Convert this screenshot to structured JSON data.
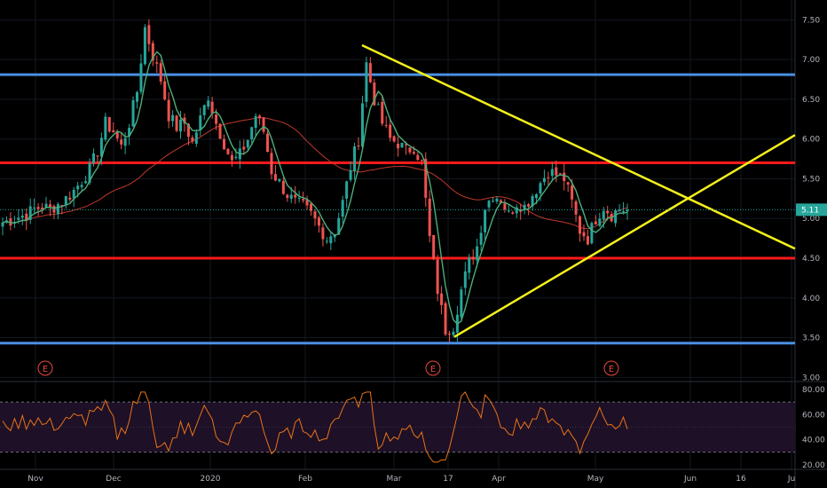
{
  "chart_data": [
    {
      "type": "candlestick",
      "title": "",
      "xlabel": "",
      "ylabel": "",
      "x_tick_labels": [
        "Nov",
        "Dec",
        "2020",
        "Feb",
        "Mar",
        "17",
        "Apr",
        "May",
        "Jun",
        "16",
        "Ju"
      ],
      "y_tick_labels": [
        "7.50",
        "7.00",
        "6.50",
        "6.00",
        "5.50",
        "5.00",
        "4.50",
        "4.00",
        "3.50",
        "3.00"
      ],
      "ylim": [
        2.97,
        7.75
      ],
      "last_price_label": "5.11",
      "earnings_markers": [
        "E",
        "E",
        "E"
      ],
      "horizontal_levels": [
        {
          "value": 6.81,
          "color": "#4a90e2"
        },
        {
          "value": 5.7,
          "color": "#ff1a1a"
        },
        {
          "value": 4.5,
          "color": "#ff1a1a"
        },
        {
          "value": 3.43,
          "color": "#4a90e2"
        }
      ],
      "trendlines_color": "#f5f01a",
      "close_series_approx": [
        4.95,
        4.98,
        5.02,
        5.05,
        5.12,
        5.15,
        5.12,
        5.18,
        5.25,
        5.35,
        5.48,
        5.62,
        5.85,
        6.2,
        6.1,
        5.9,
        6.2,
        6.6,
        7.4,
        7.05,
        6.75,
        6.3,
        6.15,
        6.2,
        5.95,
        6.25,
        6.55,
        6.2,
        5.95,
        5.7,
        5.8,
        6.0,
        6.3,
        6.1,
        5.6,
        5.45,
        5.3,
        5.2,
        5.15,
        5.05,
        4.9,
        4.75,
        4.85,
        5.2,
        5.65,
        6.0,
        6.95,
        6.5,
        6.2,
        6.0,
        5.95,
        5.85,
        5.9,
        5.7,
        4.75,
        4.1,
        3.6,
        3.65,
        4.1,
        4.45,
        4.65,
        5.15,
        5.3,
        5.25,
        5.05,
        5.2,
        5.15,
        5.3,
        5.45,
        5.6,
        5.55,
        5.5,
        5.2,
        4.85,
        4.75,
        5.0,
        5.15,
        5.05,
        5.12,
        5.11
      ],
      "series": [
        {
          "name": "",
          "color": "#26a69a"
        },
        {
          "name": "",
          "color": "#ef5350"
        }
      ]
    },
    {
      "type": "line",
      "title": "",
      "y_tick_labels": [
        "80.00",
        "60.00",
        "40.00",
        "20.00"
      ],
      "ylim": [
        17,
        85
      ],
      "bands": [
        30,
        70
      ],
      "line_color": "#e8731a",
      "band_fill": "#1e1026"
    }
  ]
}
